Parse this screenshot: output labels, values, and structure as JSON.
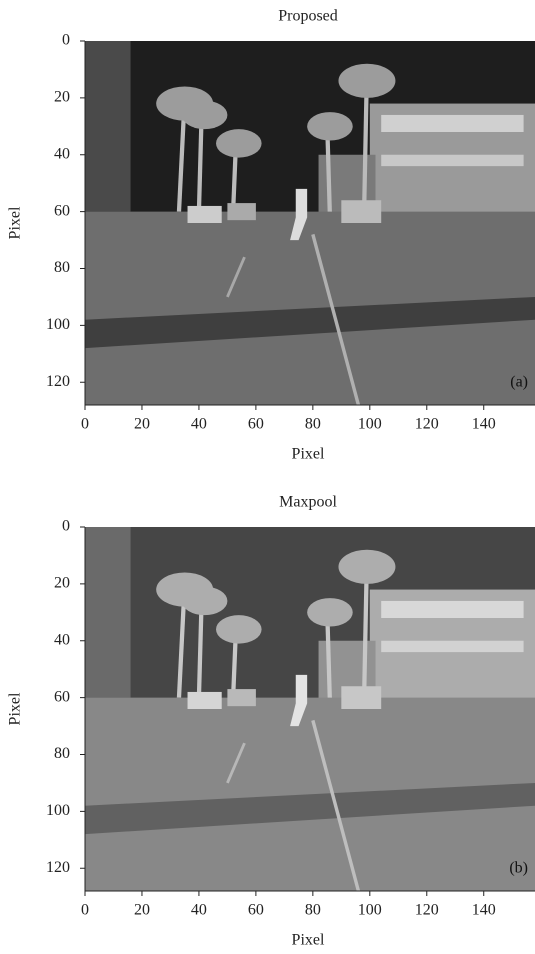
{
  "chart_data": [
    {
      "type": "image",
      "title": "Proposed",
      "xlabel": "Pixel",
      "ylabel": "Pixel",
      "panel_label": "(a)",
      "xlim": [
        0,
        158
      ],
      "ylim": [
        128,
        0
      ],
      "xticks": [
        0,
        20,
        40,
        60,
        80,
        100,
        120,
        140
      ],
      "yticks": [
        0,
        20,
        40,
        60,
        80,
        100,
        120
      ]
    },
    {
      "type": "image",
      "title": "Maxpool",
      "xlabel": "Pixel",
      "ylabel": "Pixel",
      "panel_label": "(b)",
      "xlim": [
        0,
        158
      ],
      "ylim": [
        128,
        0
      ],
      "xticks": [
        0,
        20,
        40,
        60,
        80,
        100,
        120,
        140
      ],
      "yticks": [
        0,
        20,
        40,
        60,
        80,
        100,
        120
      ]
    }
  ]
}
